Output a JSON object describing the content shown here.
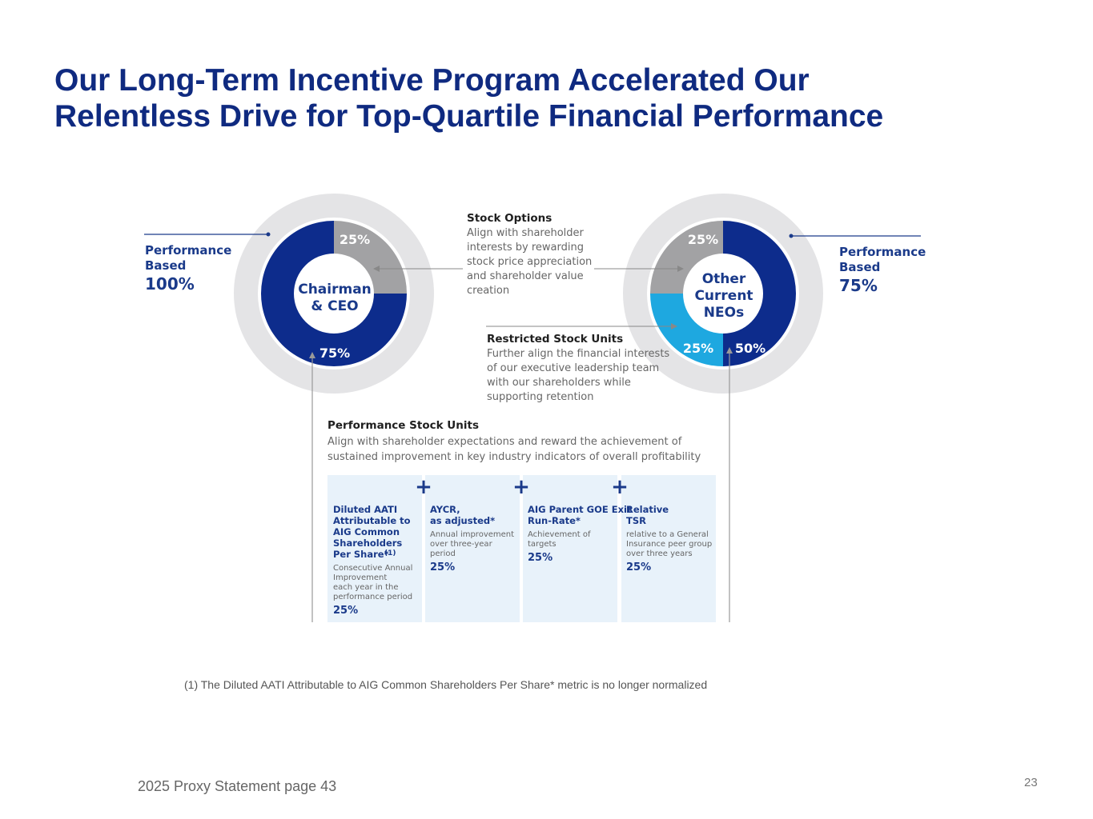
{
  "title": {
    "line1": "Our Long-Term Incentive Program Accelerated Our",
    "line2": "Relentless Drive for Top-Quartile Financial Performance"
  },
  "ceo_chart": {
    "center_line1": "Chairman",
    "center_line2": "& CEO",
    "stock_options_pct": "25%",
    "psu_pct": "75%",
    "perf_label_line1": "Performance",
    "perf_label_line2": "Based",
    "perf_value": "100%"
  },
  "neo_chart": {
    "center_line1": "Other",
    "center_line2": "Current",
    "center_line3": "NEOs",
    "stock_options_pct": "25%",
    "rsu_pct": "25%",
    "psu_pct": "50%",
    "perf_label_line1": "Performance",
    "perf_label_line2": "Based",
    "perf_value": "75%"
  },
  "stock_options": {
    "heading": "Stock Options",
    "lines": [
      "Align with shareholder",
      "interests by rewarding",
      "stock price appreciation",
      "and shareholder value",
      "creation"
    ]
  },
  "rsu": {
    "heading": "Restricted Stock Units",
    "lines": [
      "Further align the financial interests",
      "of our executive leadership team",
      "with our shareholders while",
      "supporting retention"
    ]
  },
  "psu": {
    "heading": "Performance Stock Units",
    "lines": [
      "Align with shareholder expectations and reward the achievement of",
      "sustained improvement in key industry indicators of overall profitability"
    ]
  },
  "metrics": [
    {
      "title_lines": [
        "Diluted AATI",
        "Attributable to",
        "AIG Common",
        "Shareholders",
        "Per Share*"
      ],
      "superscript": "(1)",
      "desc_lines": [
        "Consecutive Annual",
        "Improvement",
        "each year in the",
        "performance period"
      ],
      "weight": "25%"
    },
    {
      "title_lines": [
        "AYCR,",
        "as adjusted*"
      ],
      "desc_lines": [
        "Annual improvement",
        "over three-year",
        "period"
      ],
      "weight": "25%"
    },
    {
      "title_lines": [
        "AIG Parent GOE Exit",
        "Run-Rate*"
      ],
      "desc_lines": [
        "Achievement of",
        "targets"
      ],
      "weight": "25%"
    },
    {
      "title_lines": [
        "Relative",
        "TSR"
      ],
      "desc_lines": [
        "relative to a General",
        "Insurance peer group",
        "over three years"
      ],
      "weight": "25%"
    }
  ],
  "plus_sign": "+",
  "footnote": "(1) The Diluted AATI Attributable to AIG Common Shareholders Per Share* metric is no longer normalized",
  "source": "2025 Proxy Statement page 43",
  "page_number": "23",
  "colors": {
    "navy": "#0d2c8c",
    "gray": "#a2a2a4",
    "light_gray_ring": "#e4e4e6",
    "cyan": "#1ea8e0",
    "light_blue_box": "#e8f2fa",
    "title_navy": "#0f2a80"
  }
}
